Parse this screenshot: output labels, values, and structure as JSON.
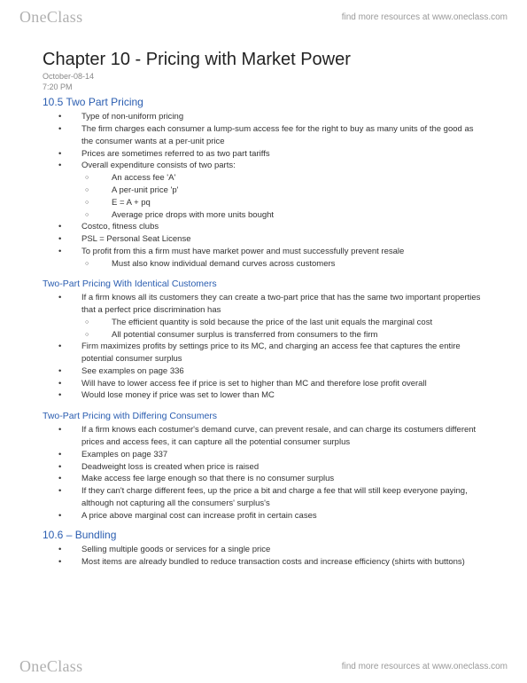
{
  "brand": {
    "part1": "One",
    "part2": "Class"
  },
  "tagline": "find more resources at www.oneclass.com",
  "title": "Chapter 10 - Pricing with Market Power",
  "date": "October-08-14",
  "time": "7:20 PM",
  "colors": {
    "heading_blue": "#2a5db0",
    "text": "#333333",
    "meta": "#888888",
    "brand_gray": "#b0b0b0",
    "background": "#ffffff"
  },
  "sections": [
    {
      "heading": "10.5 Two Part Pricing",
      "items": [
        {
          "l": 1,
          "t": "Type of non-uniform pricing"
        },
        {
          "l": 1,
          "t": "The firm charges each consumer a lump-sum access fee for the right to buy as many units of the good as the consumer wants at a per-unit price"
        },
        {
          "l": 1,
          "t": "Prices are sometimes referred to as two part tariffs"
        },
        {
          "l": 1,
          "t": "Overall expenditure consists of two parts:"
        },
        {
          "l": 2,
          "t": "An access fee 'A'"
        },
        {
          "l": 2,
          "t": "A per-unit price 'p'"
        },
        {
          "l": 2,
          "t": "E = A + pq"
        },
        {
          "l": 2,
          "t": "Average price drops with more units bought"
        },
        {
          "l": 1,
          "t": "Costco, fitness clubs"
        },
        {
          "l": 1,
          "t": "PSL = Personal Seat License"
        },
        {
          "l": 1,
          "t": "To profit from this a firm must have market power and must successfully prevent resale"
        },
        {
          "l": 2,
          "t": "Must also know individual demand curves across customers"
        }
      ]
    },
    {
      "subheading": "Two-Part Pricing With Identical Customers",
      "items": [
        {
          "l": 1,
          "t": "If a firm knows all its customers they can create a two-part price that has the same two important properties that a perfect price discrimination has"
        },
        {
          "l": 2,
          "t": "The efficient quantity is sold because the price of the last unit equals the marginal cost"
        },
        {
          "l": 2,
          "t": "All potential consumer surplus is transferred from consumers to the firm"
        },
        {
          "l": 1,
          "t": "Firm maximizes profits by settings price to its MC, and charging an access fee that captures the entire potential consumer surplus"
        },
        {
          "l": 1,
          "t": "See examples on page 336"
        },
        {
          "l": 1,
          "t": "Will have to lower access fee if price is set to higher than MC and therefore lose profit overall"
        },
        {
          "l": 1,
          "t": "Would lose money if price was set to lower than MC"
        }
      ]
    },
    {
      "subheading": "Two-Part Pricing with Differing Consumers",
      "items": [
        {
          "l": 1,
          "t": "If a firm knows each costumer's demand curve, can prevent resale, and can charge its costumers different prices and access fees, it can capture all the potential consumer surplus"
        },
        {
          "l": 1,
          "t": "Examples on page 337"
        },
        {
          "l": 1,
          "t": "Deadweight loss is created when price is raised"
        },
        {
          "l": 1,
          "t": "Make access fee large enough so that there is no consumer surplus"
        },
        {
          "l": 1,
          "t": "If they can't charge different fees, up the price a bit and charge a fee that will still keep everyone paying, although not capturing all the consumers' surplus's"
        },
        {
          "l": 1,
          "t": "A price above marginal cost can increase profit in certain cases"
        }
      ]
    },
    {
      "heading": "10.6 – Bundling",
      "items": [
        {
          "l": 1,
          "t": "Selling multiple goods or services for a single price"
        },
        {
          "l": 1,
          "t": "Most items are already bundled to reduce transaction costs and increase efficiency (shirts with buttons)"
        }
      ]
    }
  ]
}
